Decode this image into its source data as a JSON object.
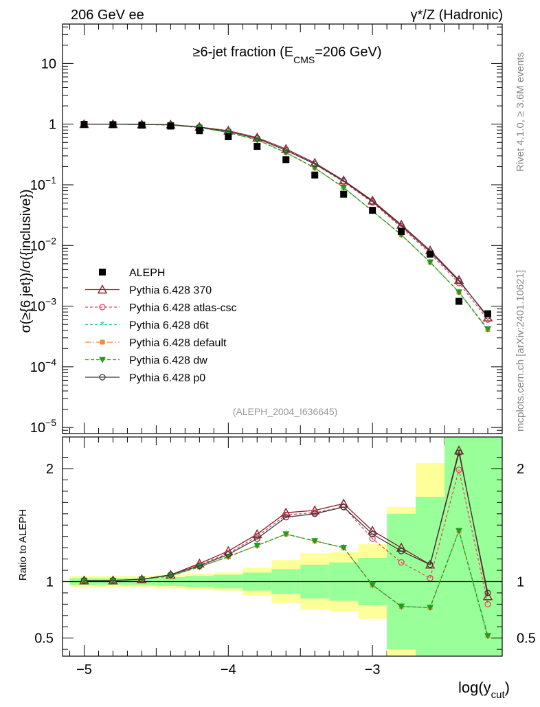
{
  "header": {
    "left": "206 GeV ee",
    "right": "γ*/Z (Hadronic)"
  },
  "side_texts": {
    "rivet": "Rivet 4.1.0, ≥ 3.6M events",
    "mcplots": "mcplots.cern.ch [arXiv:2401.10621]"
  },
  "chart_data": {
    "type": "line",
    "title": "≥6-jet fraction (E_CMS=206 GeV)",
    "title_parts": {
      "main": "≥6-jet fraction (E",
      "sub": "CMS",
      "tail": "=206 GeV)"
    },
    "analysis_id": "(ALEPH_2004_I636645)",
    "xlabel": {
      "main": "log(y",
      "sub": "cut",
      "tail": ")"
    },
    "ylabel_main": "σ(≥{6 jet})/σ({inclusive})",
    "ylabel_ratio": "Ratio to ALEPH",
    "xlim": [
      -5.15,
      -2.1
    ],
    "ylim_main_log10": [
      -5.1,
      1.65
    ],
    "ylim_ratio": [
      0.34,
      2.28
    ],
    "x_ticks": [
      {
        "v": -5,
        "label": "−5"
      },
      {
        "v": -4,
        "label": "−4"
      },
      {
        "v": -3,
        "label": "−3"
      }
    ],
    "main_y_ticks": [
      {
        "v": 1,
        "base": "10",
        "exp": ""
      },
      {
        "v": 0,
        "base": "1",
        "exp": ""
      },
      {
        "v": -1,
        "base": "10",
        "exp": "−1"
      },
      {
        "v": -2,
        "base": "10",
        "exp": "−2"
      },
      {
        "v": -3,
        "base": "10",
        "exp": "−3"
      },
      {
        "v": -4,
        "base": "10",
        "exp": "−4"
      },
      {
        "v": -5,
        "base": "10",
        "exp": "−5"
      }
    ],
    "ratio_y_ticks": [
      {
        "v": 0.5,
        "label": "0.5"
      },
      {
        "v": 1,
        "label": "1"
      },
      {
        "v": 2,
        "label": "2"
      }
    ],
    "x": [
      -5.0,
      -4.8,
      -4.6,
      -4.4,
      -4.2,
      -4.0,
      -3.8,
      -3.6,
      -3.4,
      -3.2,
      -3.0,
      -2.8,
      -2.6,
      -2.4,
      -2.2
    ],
    "bin_edges": [
      -5.1,
      -4.9,
      -4.7,
      -4.5,
      -4.3,
      -4.1,
      -3.9,
      -3.7,
      -3.5,
      -3.3,
      -3.1,
      -2.9,
      -2.7,
      -2.5,
      -2.3,
      -2.1
    ],
    "reference": {
      "name": "ALEPH",
      "values": [
        0.99,
        0.98,
        0.96,
        0.93,
        0.78,
        0.62,
        0.43,
        0.26,
        0.145,
        0.07,
        0.038,
        0.017,
        0.0072,
        0.0012,
        0.00075
      ],
      "band_yellow": [
        0.05,
        0.05,
        0.05,
        0.06,
        0.07,
        0.08,
        0.12,
        0.19,
        0.25,
        0.26,
        0.33,
        0.66,
        1.05,
        1.4,
        1.4
      ],
      "band_green": [
        0.03,
        0.03,
        0.03,
        0.04,
        0.05,
        0.06,
        0.08,
        0.11,
        0.15,
        0.17,
        0.21,
        0.6,
        0.75,
        1.4,
        1.4
      ]
    },
    "series": [
      {
        "name": "Pythia 6.428 370",
        "color": "#8b1a2b",
        "dash": "",
        "marker": "triangle-open",
        "values": [
          1.0,
          1.0,
          0.99,
          0.98,
          0.9,
          0.78,
          0.6,
          0.39,
          0.23,
          0.118,
          0.055,
          0.022,
          0.0083,
          0.0027,
          0.00065
        ],
        "ratio": [
          1.01,
          1.01,
          1.02,
          1.06,
          1.16,
          1.27,
          1.42,
          1.61,
          1.63,
          1.69,
          1.45,
          1.3,
          1.15,
          2.16,
          0.87
        ]
      },
      {
        "name": "Pythia 6.428 atlas-csc",
        "color": "#e8445a",
        "dash": "4,3",
        "marker": "circle-open",
        "values": [
          1.0,
          1.0,
          0.99,
          0.98,
          0.9,
          0.77,
          0.59,
          0.38,
          0.22,
          0.112,
          0.051,
          0.02,
          0.0074,
          0.0024,
          0.0006
        ],
        "ratio": [
          1.01,
          1.01,
          1.02,
          1.06,
          1.15,
          1.25,
          1.4,
          1.59,
          1.61,
          1.66,
          1.38,
          1.17,
          1.03,
          1.99,
          0.8
        ]
      },
      {
        "name": "Pythia 6.428 d6t",
        "color": "#1fc8a0",
        "dash": "4,3",
        "marker": "star",
        "values": [
          1.0,
          1.0,
          0.99,
          0.97,
          0.88,
          0.73,
          0.55,
          0.34,
          0.19,
          0.09,
          0.037,
          0.015,
          0.0053,
          0.0017,
          0.0004
        ],
        "ratio": [
          1.01,
          1.01,
          1.02,
          1.05,
          1.13,
          1.22,
          1.32,
          1.42,
          1.36,
          1.3,
          0.97,
          0.78,
          0.77,
          1.45,
          0.5
        ]
      },
      {
        "name": "Pythia 6.428 default",
        "color": "#f58a3a",
        "dash": "8,3,2,3",
        "marker": "square",
        "values": [
          1.0,
          1.0,
          0.99,
          0.97,
          0.88,
          0.73,
          0.55,
          0.34,
          0.19,
          0.09,
          0.037,
          0.015,
          0.0053,
          0.0017,
          0.00041
        ],
        "ratio": [
          1.01,
          1.01,
          1.02,
          1.05,
          1.13,
          1.22,
          1.32,
          1.42,
          1.36,
          1.3,
          0.97,
          0.78,
          0.77,
          1.45,
          0.52
        ]
      },
      {
        "name": "Pythia 6.428 dw",
        "color": "#1e9e1e",
        "dash": "5,3",
        "marker": "triangle-down",
        "values": [
          1.0,
          1.0,
          0.99,
          0.97,
          0.88,
          0.73,
          0.55,
          0.34,
          0.19,
          0.09,
          0.037,
          0.015,
          0.0053,
          0.0017,
          0.00042
        ],
        "ratio": [
          1.01,
          1.01,
          1.02,
          1.05,
          1.13,
          1.22,
          1.32,
          1.42,
          1.36,
          1.3,
          0.97,
          0.78,
          0.77,
          1.45,
          0.52
        ]
      },
      {
        "name": "Pythia 6.428 p0",
        "color": "#3a3a3a",
        "dash": "",
        "marker": "circle-open",
        "values": [
          1.0,
          1.0,
          0.99,
          0.98,
          0.89,
          0.76,
          0.58,
          0.37,
          0.22,
          0.115,
          0.053,
          0.021,
          0.0079,
          0.0026,
          0.00068
        ],
        "ratio": [
          1.01,
          1.01,
          1.02,
          1.06,
          1.14,
          1.24,
          1.38,
          1.57,
          1.6,
          1.66,
          1.42,
          1.27,
          1.15,
          2.14,
          0.9
        ]
      }
    ],
    "legend_position": "center-left"
  }
}
